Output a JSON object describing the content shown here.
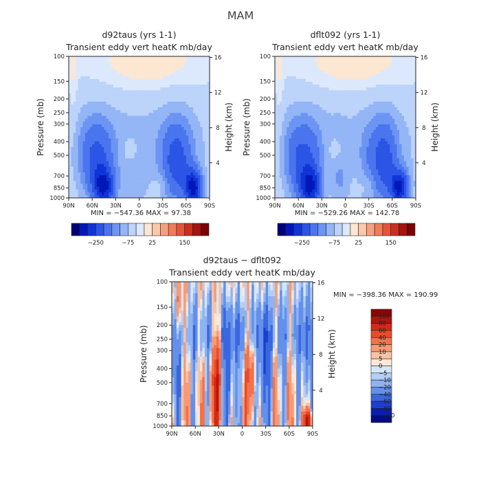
{
  "figure_title": "MAM",
  "chart_data": [
    {
      "type": "heatmap",
      "id": "p1",
      "title": "d92taus (yrs 1-1)",
      "subtitle": "Transient eddy vert heatK mb/day",
      "ylabel": "Pressure (mb)",
      "y2label": "Height (km)",
      "x_ticks": [
        "90N",
        "60N",
        "30N",
        "0",
        "30S",
        "60S",
        "90S"
      ],
      "y_ticks": [
        100,
        150,
        200,
        250,
        300,
        400,
        500,
        700,
        850,
        1000
      ],
      "y2_ticks": [
        16,
        12,
        8,
        4
      ],
      "stats": "MIN = −547.36   MAX = 97.38",
      "colorbar_labels": [
        "−250",
        "−75",
        "25",
        "150"
      ],
      "colorbar_colors": [
        "#00007d",
        "#0018b8",
        "#1035d6",
        "#2c55e6",
        "#4a75ee",
        "#6c95f3",
        "#94b5f6",
        "#bcd3fa",
        "#dce9fd",
        "#fde6d2",
        "#f9c9a9",
        "#f4a17f",
        "#ee7d5b",
        "#e2553a",
        "#c8301f",
        "#a41410",
        "#7a0303"
      ]
    },
    {
      "type": "heatmap",
      "id": "p2",
      "title": "dflt092 (yrs 1-1)",
      "subtitle": "Transient eddy vert heatK mb/day",
      "ylabel": "Pressure (mb)",
      "y2label": "Height (km)",
      "x_ticks": [
        "90N",
        "60N",
        "30N",
        "0",
        "30S",
        "60S",
        "90S"
      ],
      "y_ticks": [
        100,
        150,
        200,
        250,
        300,
        400,
        500,
        700,
        850,
        1000
      ],
      "y2_ticks": [
        16,
        12,
        8,
        4
      ],
      "stats": "MIN = −529.26   MAX = 142.78",
      "colorbar_labels": [
        "−250",
        "−75",
        "25",
        "150"
      ],
      "colorbar_colors": [
        "#00007d",
        "#0018b8",
        "#1035d6",
        "#2c55e6",
        "#4a75ee",
        "#6c95f3",
        "#94b5f6",
        "#bcd3fa",
        "#dce9fd",
        "#fde6d2",
        "#f9c9a9",
        "#f4a17f",
        "#ee7d5b",
        "#e2553a",
        "#c8301f",
        "#a41410",
        "#7a0303"
      ]
    },
    {
      "type": "heatmap",
      "id": "p3",
      "title": "d92taus − dflt092",
      "subtitle": "Transient eddy vert heatK mb/day",
      "ylabel": "Pressure (mb)",
      "y2label": "Height (km)",
      "x_ticks": [
        "90N",
        "60N",
        "30N",
        "0",
        "30S",
        "60S",
        "90S"
      ],
      "y_ticks": [
        100,
        150,
        200,
        250,
        300,
        400,
        500,
        700,
        850,
        1000
      ],
      "y2_ticks": [
        16,
        12,
        8,
        4
      ],
      "stats": "MIN = −398.36   MAX = 190.99",
      "colorbar_labels": [
        "100",
        "80",
        "60",
        "40",
        "20",
        "10",
        "5",
        "0",
        "−5",
        "−10",
        "−20",
        "−40",
        "−60",
        "−80",
        "−100"
      ],
      "colorbar_colors": [
        "#8b0404",
        "#b1140c",
        "#d22a17",
        "#ea4a2a",
        "#f4714a",
        "#f79b77",
        "#f9c3a5",
        "#fde7d6",
        "#d7e7fb",
        "#b4cff6",
        "#8fb3f0",
        "#6390ea",
        "#3a66de",
        "#1c3fcf",
        "#0a1fb0",
        "#040c80"
      ]
    }
  ]
}
